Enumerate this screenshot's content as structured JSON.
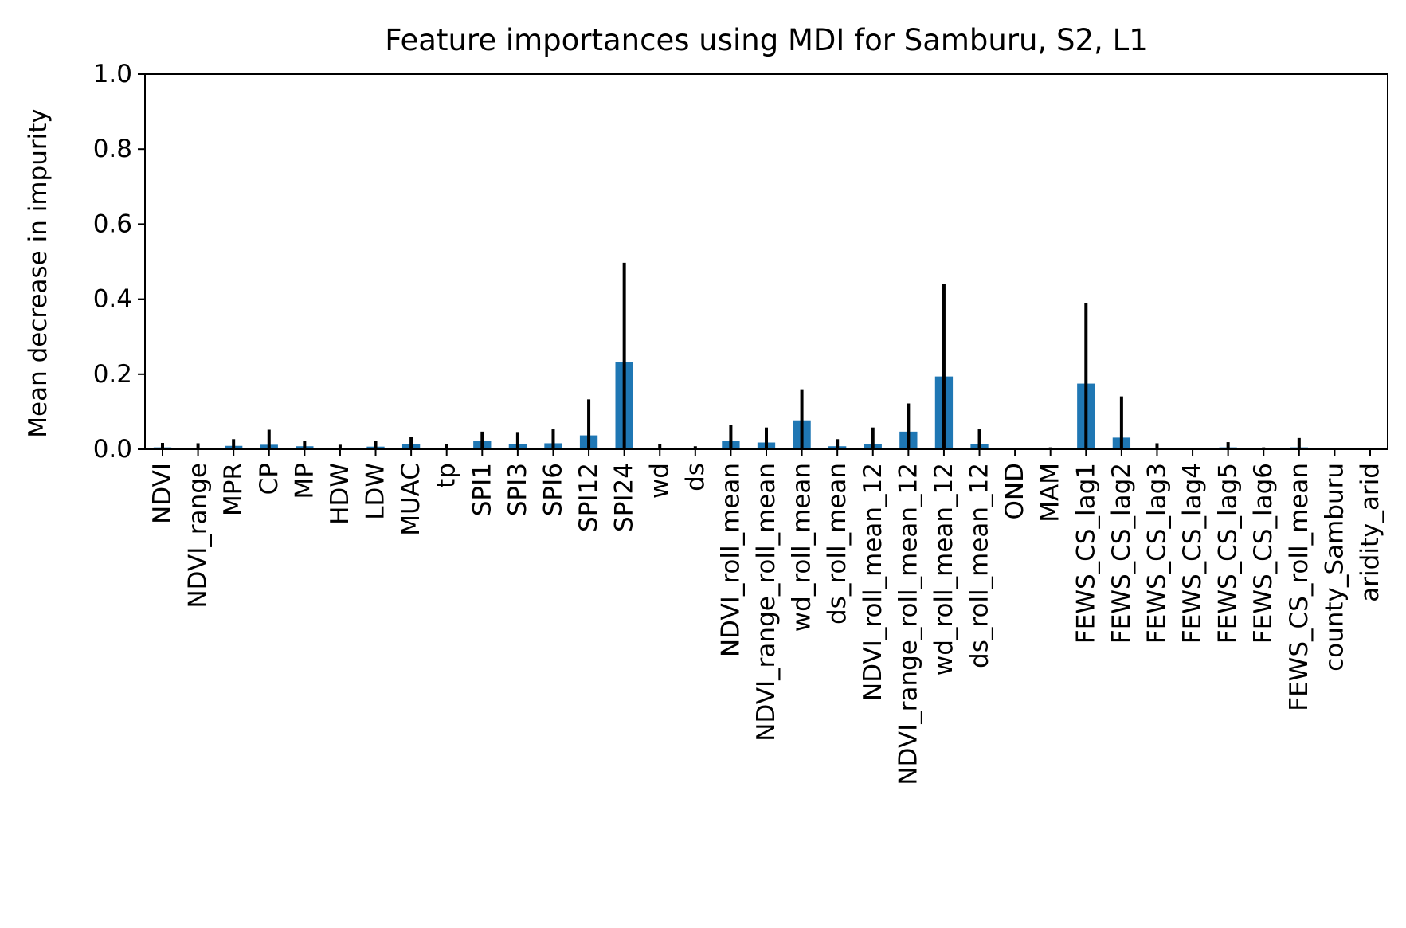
{
  "chart_data": {
    "type": "bar",
    "title": "Feature importances using MDI for Samburu, S2, L1",
    "xlabel": "",
    "ylabel": "Mean decrease in impurity",
    "ylim": [
      0,
      1.0
    ],
    "yticks": [
      "0.0",
      "0.2",
      "0.4",
      "0.6",
      "0.8",
      "1.0"
    ],
    "grid": false,
    "bar_color": "#1f77b4",
    "error_color": "#000000",
    "categories": [
      "NDVI",
      "NDVI_range",
      "MPR",
      "CP",
      "MP",
      "HDW",
      "LDW",
      "MUAC",
      "tp",
      "SPI1",
      "SPI3",
      "SPI6",
      "SPI12",
      "SPI24",
      "wd",
      "ds",
      "NDVI_roll_mean",
      "NDVI_range_roll_mean",
      "wd_roll_mean",
      "ds_roll_mean",
      "NDVI_roll_mean_12",
      "NDVI_range_roll_mean_12",
      "wd_roll_mean_12",
      "ds_roll_mean_12",
      "OND",
      "MAM",
      "FEWS_CS_lag1",
      "FEWS_CS_lag2",
      "FEWS_CS_lag3",
      "FEWS_CS_lag4",
      "FEWS_CS_lag5",
      "FEWS_CS_lag6",
      "FEWS_CS_roll_mean",
      "county_Samburu",
      "aridity_arid"
    ],
    "values": [
      0.005,
      0.004,
      0.009,
      0.012,
      0.008,
      0.003,
      0.007,
      0.014,
      0.004,
      0.022,
      0.013,
      0.016,
      0.037,
      0.232,
      0.003,
      0.004,
      0.022,
      0.018,
      0.077,
      0.008,
      0.013,
      0.047,
      0.194,
      0.013,
      0.0,
      0.002,
      0.175,
      0.031,
      0.004,
      0.001,
      0.005,
      0.001,
      0.005,
      0.0,
      0.0
    ],
    "errors": [
      0.012,
      0.012,
      0.018,
      0.04,
      0.015,
      0.009,
      0.015,
      0.018,
      0.01,
      0.025,
      0.033,
      0.037,
      0.096,
      0.265,
      0.01,
      0.004,
      0.042,
      0.04,
      0.083,
      0.019,
      0.045,
      0.075,
      0.247,
      0.04,
      0.0,
      0.003,
      0.215,
      0.11,
      0.012,
      0.003,
      0.014,
      0.004,
      0.025,
      0.0,
      0.0
    ]
  }
}
